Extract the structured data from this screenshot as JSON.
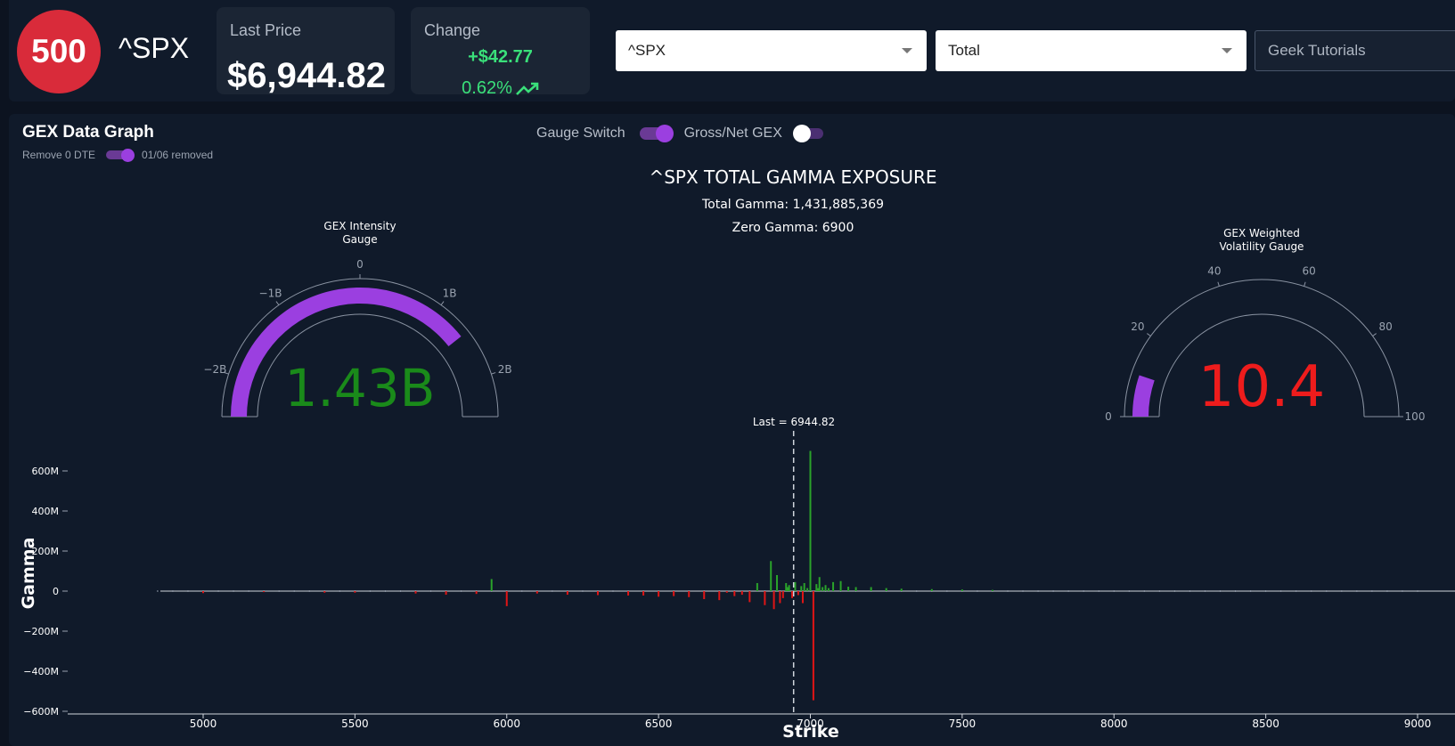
{
  "header": {
    "logo_text": "500",
    "ticker": "^SPX",
    "price_label": "Last Price",
    "price_value": "$6,944.82",
    "change_label": "Change",
    "change_abs": "+$42.77",
    "change_pct": "0.62%",
    "positive_color": "#3ae07a",
    "ticker_select_value": "^SPX",
    "mode_select_value": "Total",
    "tutorials_label": "Geek Tutorials"
  },
  "panel": {
    "title": "GEX Data Graph",
    "remove_dte_label": "Remove 0 DTE",
    "removed_note": "01/06 removed",
    "gauge_switch_label": "Gauge Switch",
    "gauge_switch_on": true,
    "gross_net_label": "Gross/Net GEX",
    "gross_net_on": false
  },
  "chart_data": [
    {
      "type": "gauge",
      "title_lines": [
        "GEX Intensity",
        "Gauge"
      ],
      "value": 1.431885369,
      "value_label": "1.43B",
      "range": [
        -2.5,
        2.5
      ],
      "ticks": [
        -2,
        -1,
        0,
        1,
        2
      ],
      "tick_labels": [
        "−2B",
        "−1B",
        "0",
        "1B",
        "2B"
      ],
      "bar_color": "#9b3fe0",
      "value_color": "#1a8a1a"
    },
    {
      "type": "gauge",
      "title_lines": [
        "GEX Weighted",
        "Volatility Gauge"
      ],
      "value": 10.4,
      "value_label": "10.4",
      "range": [
        0,
        100
      ],
      "ticks": [
        0,
        20,
        40,
        60,
        80,
        100
      ],
      "tick_labels": [
        "0",
        "20",
        "40",
        "60",
        "80",
        "100"
      ],
      "bar_color": "#9b3fe0",
      "value_color": "#ee1c1c"
    },
    {
      "type": "bar",
      "title": "^SPX TOTAL GAMMA EXPOSURE",
      "subtitle_lines": [
        "Total Gamma: 1,431,885,369",
        "Zero Gamma: 6900"
      ],
      "xlabel": "Strike",
      "ylabel": "Gamma",
      "xlim": [
        4600,
        9100
      ],
      "ylim": [
        -600,
        700
      ],
      "x_ticks": [
        5000,
        5500,
        6000,
        6500,
        7000,
        7500,
        8000,
        8500,
        9000
      ],
      "y_ticks": [
        600,
        400,
        200,
        0,
        -200,
        -400,
        -600
      ],
      "y_tick_labels": [
        "600M",
        "400M",
        "200M",
        "0",
        "−200M",
        "−400M",
        "−600M"
      ],
      "last_price": 6944.82,
      "last_label": "Last = 6944.82",
      "positive_color": "#2aa32a",
      "negative_color": "#e01515",
      "series": [
        {
          "strikes": [
            5000,
            5200,
            5400,
            5500,
            5700,
            5800,
            5900,
            5950,
            6000,
            6100,
            6200,
            6300,
            6400,
            6450,
            6500,
            6550,
            6600,
            6650,
            6700,
            6725,
            6750,
            6775,
            6800,
            6825,
            6850,
            6870,
            6880,
            6890,
            6900,
            6910,
            6920,
            6925,
            6930,
            6940,
            6950,
            6960,
            6970,
            6975,
            6980,
            6990,
            7000,
            7010,
            7020,
            7025,
            7030,
            7040,
            7050,
            7060,
            7075,
            7100,
            7125,
            7150,
            7200,
            7250,
            7300,
            7400,
            7500,
            7600
          ],
          "values": [
            -10,
            -5,
            -8,
            -8,
            -12,
            -18,
            -14,
            60,
            -75,
            -12,
            -18,
            -20,
            -22,
            -22,
            -28,
            -25,
            -30,
            -40,
            -45,
            -8,
            -25,
            -18,
            -55,
            40,
            -70,
            150,
            -90,
            80,
            -60,
            -35,
            40,
            20,
            30,
            -35,
            45,
            -20,
            25,
            -60,
            40,
            15,
            700,
            -545,
            35,
            15,
            70,
            20,
            30,
            15,
            45,
            50,
            22,
            20,
            20,
            15,
            12,
            10,
            8,
            6
          ]
        }
      ]
    }
  ]
}
